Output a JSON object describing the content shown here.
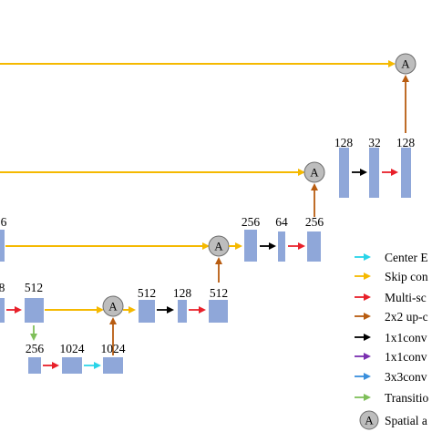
{
  "colors": {
    "block": "#8fa7d9",
    "skip": "#f5b900",
    "center": "#29d4e8",
    "multiscale": "#e8202a",
    "upconv": "#b85c10",
    "conv1x1": "#000000",
    "conv1x1_purple": "#7a2fb0",
    "conv3x3": "#3a8fdc",
    "transition": "#7fbf5a",
    "attention_fill": "#bdbdbd"
  },
  "block_labels": {
    "r1_a": "128",
    "r1_b": "32",
    "r1_c": "128",
    "r2_partial": "6",
    "r2_a": "256",
    "r2_b": "64",
    "r2_c": "256",
    "r3_partial": "8",
    "r3_a": "512",
    "r3_b": "512",
    "r3_c": "128",
    "r3_d": "512",
    "r4_a": "256",
    "r4_b": "1024",
    "r4_c": "1024"
  },
  "attention_label": "A",
  "legend": {
    "center": "Center E",
    "skip": "Skip con",
    "multiscale": "Multi-sc",
    "upconv": "2x2 up-c",
    "conv1x1_black": "1x1conv",
    "conv1x1_purple": "1x1conv",
    "conv3x3": "3x3conv",
    "transition": "Transitio",
    "attention": "Spatial a"
  }
}
